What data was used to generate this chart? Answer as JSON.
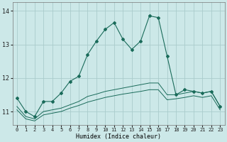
{
  "xlabel": "Humidex (Indice chaleur)",
  "background_color": "#cce8e8",
  "grid_color": "#aacccc",
  "line_color": "#1a6b5a",
  "x_values": [
    0,
    1,
    2,
    3,
    4,
    5,
    6,
    7,
    8,
    9,
    10,
    11,
    12,
    13,
    14,
    15,
    16,
    17,
    18,
    19,
    20,
    21,
    22,
    23
  ],
  "main_line": [
    11.4,
    11.0,
    10.85,
    11.3,
    11.3,
    11.55,
    11.9,
    12.05,
    12.7,
    13.1,
    13.45,
    13.65,
    13.15,
    12.85,
    13.1,
    13.85,
    13.8,
    12.65,
    11.5,
    11.65,
    11.6,
    11.55,
    11.6,
    11.15
  ],
  "lower_line1": [
    11.15,
    10.85,
    10.78,
    11.0,
    11.05,
    11.1,
    11.2,
    11.3,
    11.45,
    11.52,
    11.6,
    11.65,
    11.7,
    11.75,
    11.8,
    11.85,
    11.85,
    11.5,
    11.5,
    11.55,
    11.6,
    11.55,
    11.6,
    11.15
  ],
  "lower_line2": [
    11.05,
    10.78,
    10.72,
    10.9,
    10.95,
    11.0,
    11.1,
    11.18,
    11.28,
    11.35,
    11.42,
    11.47,
    11.52,
    11.56,
    11.6,
    11.65,
    11.65,
    11.35,
    11.38,
    11.42,
    11.47,
    11.42,
    11.47,
    11.05
  ],
  "ylim": [
    10.6,
    14.25
  ],
  "yticks": [
    11,
    12,
    13,
    14
  ],
  "xticks": [
    0,
    1,
    2,
    3,
    4,
    5,
    6,
    7,
    8,
    9,
    10,
    11,
    12,
    13,
    14,
    15,
    16,
    17,
    18,
    19,
    20,
    21,
    22,
    23
  ],
  "xlim": [
    -0.5,
    23.5
  ],
  "figwidth": 3.2,
  "figheight": 2.0,
  "dpi": 100
}
